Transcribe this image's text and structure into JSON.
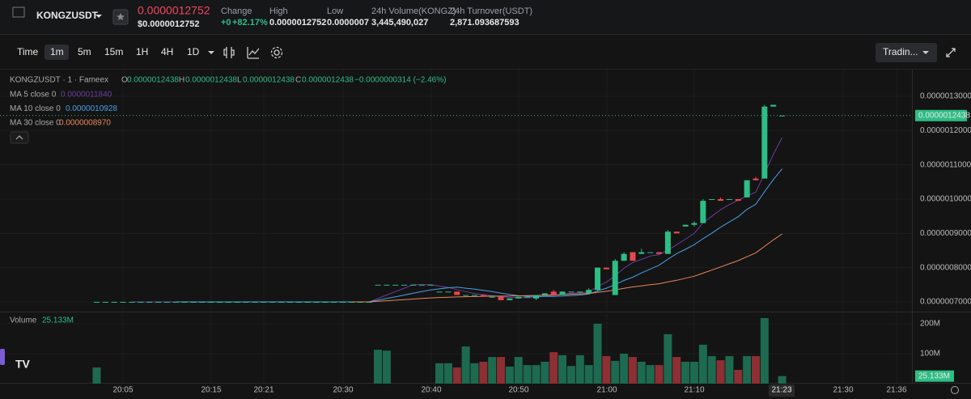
{
  "header": {
    "symbol": "KONGZUSDT",
    "price": "0.0000012752",
    "price_usd": "$0.0000012752",
    "stats": [
      {
        "label": "Change",
        "value": "+0",
        "extra": "+82.17%"
      },
      {
        "label": "High",
        "value": "0.0000012752"
      },
      {
        "label": "Low",
        "value": "0.0000007"
      },
      {
        "label": "24h Volume(KONGZ)",
        "value": "3,445,490,027"
      },
      {
        "label": "24h Turnover(USDT)",
        "value": "2,871.093687593"
      }
    ]
  },
  "toolbar": {
    "intervals": [
      "Time",
      "1m",
      "5m",
      "15m",
      "1H",
      "4H",
      "1D"
    ],
    "selected": 1,
    "view": "Tradin..."
  },
  "chart": {
    "legend": {
      "title": "KONGZUSDT · 1 · Fameex",
      "o_label": "O",
      "open": "0.0000012438",
      "h_label": "H",
      "high": "0.0000012438",
      "l_label": "L",
      "low": "0.0000012438",
      "c_label": "C",
      "close": "0.0000012438",
      "change": "−0.0000000314 (−2.46%)"
    },
    "ma": [
      {
        "label": "MA 5 close 0",
        "value": "0.0000011840",
        "period": 5
      },
      {
        "label": "MA 10 close 0",
        "value": "0.0000010928",
        "period": 10
      },
      {
        "label": "MA 30 close 0",
        "value": "0.0000008970",
        "period": 30
      }
    ],
    "colors": {
      "up": "#2ebd85",
      "down": "#e5484d",
      "volume_up": "#1d6a50",
      "volume_down": "#8e2f33",
      "ma": [
        "#6a3ea1",
        "#4b9fe6",
        "#e8875b"
      ]
    },
    "yticks": [
      {
        "value": 1.3e-06,
        "label": "0.0000013000"
      },
      {
        "value": 1.2e-06,
        "label": "0.0000012000"
      },
      {
        "value": 1.1e-06,
        "label": "0.0000011000"
      },
      {
        "value": 1e-06,
        "label": "0.0000010000"
      },
      {
        "value": 9e-07,
        "label": "0.0000009000"
      },
      {
        "value": 8e-07,
        "label": "0.0000008000"
      },
      {
        "value": 7e-07,
        "label": "0.0000007000"
      }
    ],
    "last_price": {
      "value": 1.2438e-06,
      "label": "0.0000012438"
    },
    "volume_legend": {
      "label": "Volume",
      "value": "25.133M"
    },
    "volume_ticks": [
      {
        "value": 200000000,
        "label": "200M"
      },
      {
        "value": 100000000,
        "label": "100M"
      }
    ],
    "time_labels": [
      "20:05",
      "20:15",
      "20:21",
      "20:30",
      "20:40",
      "20:50",
      "21:00",
      "21:10",
      "21:30",
      "21:36"
    ],
    "cursor_time": "21:23",
    "candles": [
      [
        7e-07,
        7e-07,
        7e-07,
        7e-07
      ],
      [
        7e-07,
        7e-07,
        7e-07,
        7e-07
      ],
      [
        7e-07,
        7e-07,
        7e-07,
        7e-07
      ],
      [
        7e-07,
        7e-07,
        7e-07,
        7e-07
      ],
      [
        7e-07,
        7e-07,
        7e-07,
        7e-07
      ],
      [
        7e-07,
        7e-07,
        7e-07,
        7e-07
      ],
      [
        7e-07,
        7e-07,
        7e-07,
        7e-07
      ],
      [
        7e-07,
        7e-07,
        7e-07,
        7e-07
      ],
      [
        7e-07,
        7e-07,
        7e-07,
        7e-07
      ],
      [
        7e-07,
        7e-07,
        7e-07,
        7e-07
      ],
      [
        7e-07,
        7e-07,
        7e-07,
        7e-07
      ],
      [
        7e-07,
        7e-07,
        7e-07,
        7e-07
      ],
      [
        7e-07,
        7e-07,
        7e-07,
        7e-07
      ],
      [
        7e-07,
        7e-07,
        7e-07,
        7e-07
      ],
      [
        7e-07,
        7e-07,
        7e-07,
        7e-07
      ],
      [
        7e-07,
        7e-07,
        7e-07,
        7e-07
      ],
      [
        7e-07,
        7e-07,
        7e-07,
        7e-07
      ],
      [
        7e-07,
        7e-07,
        7e-07,
        7e-07
      ],
      [
        7e-07,
        7e-07,
        7e-07,
        7e-07
      ],
      [
        7e-07,
        7e-07,
        7e-07,
        7e-07
      ],
      [
        7e-07,
        7e-07,
        7e-07,
        7e-07
      ],
      [
        7e-07,
        7e-07,
        7e-07,
        7e-07
      ],
      [
        7e-07,
        7e-07,
        7e-07,
        7e-07
      ],
      [
        7e-07,
        7e-07,
        7e-07,
        7e-07
      ],
      [
        7e-07,
        7e-07,
        7e-07,
        7e-07
      ],
      [
        7e-07,
        7e-07,
        7e-07,
        7e-07
      ],
      [
        7e-07,
        7e-07,
        7e-07,
        7e-07
      ],
      [
        7e-07,
        7e-07,
        7e-07,
        7e-07
      ],
      [
        7e-07,
        7e-07,
        7e-07,
        7e-07
      ],
      [
        7e-07,
        7e-07,
        7e-07,
        7e-07
      ],
      [
        7e-07,
        7e-07,
        7e-07,
        7e-07
      ],
      [
        7e-07,
        7e-07,
        7e-07,
        7e-07
      ],
      [
        7.5e-07,
        7.5e-07,
        7.5e-07,
        7.5e-07
      ],
      [
        7.5e-07,
        7.5e-07,
        7.5e-07,
        7.5e-07
      ],
      [
        7.5e-07,
        7.5e-07,
        7.5e-07,
        7.5e-07
      ],
      [
        7.5e-07,
        7.5e-07,
        7.5e-07,
        7.5e-07
      ],
      [
        7.5e-07,
        7.5e-07,
        7.5e-07,
        7.5e-07
      ],
      [
        7.5e-07,
        7.5e-07,
        7.5e-07,
        7.5e-07
      ],
      [
        7.5e-07,
        7.5e-07,
        7.5e-07,
        7.5e-07
      ],
      [
        7.3e-07,
        7.3e-07,
        7.3e-07,
        7.3e-07
      ],
      [
        7.3e-07,
        7.3e-07,
        7.3e-07,
        7.3e-07
      ],
      [
        7.3e-07,
        7.3e-07,
        7.2e-07,
        7.2e-07
      ],
      [
        7.2e-07,
        7.2e-07,
        7.2e-07,
        7.2e-07
      ],
      [
        7.2e-07,
        7.2e-07,
        7.2e-07,
        7.2e-07
      ],
      [
        7.2e-07,
        7.2e-07,
        7.15e-07,
        7.15e-07
      ],
      [
        7.15e-07,
        7.15e-07,
        7.15e-07,
        7.15e-07
      ],
      [
        7.15e-07,
        7.15e-07,
        7.05e-07,
        7.05e-07
      ],
      [
        7.05e-07,
        7.1e-07,
        7.05e-07,
        7.1e-07
      ],
      [
        7.1e-07,
        7.15e-07,
        7.1e-07,
        7.15e-07
      ],
      [
        7.15e-07,
        7.15e-07,
        7.15e-07,
        7.15e-07
      ],
      [
        7.1e-07,
        7.2e-07,
        7.05e-07,
        7.2e-07
      ],
      [
        7.2e-07,
        7.25e-07,
        7.2e-07,
        7.25e-07
      ],
      [
        7.3e-07,
        7.35e-07,
        7.2e-07,
        7.2e-07
      ],
      [
        7.2e-07,
        7.3e-07,
        7.2e-07,
        7.3e-07
      ],
      [
        7.3e-07,
        7.3e-07,
        7.3e-07,
        7.3e-07
      ],
      [
        7.3e-07,
        7.3e-07,
        7.25e-07,
        7.3e-07
      ],
      [
        7.25e-07,
        7.4e-07,
        7.25e-07,
        7.35e-07
      ],
      [
        7.35e-07,
        8e-07,
        7.3e-07,
        8e-07
      ],
      [
        8e-07,
        8e-07,
        7.95e-07,
        7.95e-07
      ],
      [
        7.2e-07,
        8.25e-07,
        7.2e-07,
        8.2e-07
      ],
      [
        8.2e-07,
        8.45e-07,
        8.2e-07,
        8.4e-07
      ],
      [
        8.45e-07,
        8.45e-07,
        8.2e-07,
        8.2e-07
      ],
      [
        8.4e-07,
        8.55e-07,
        8.4e-07,
        8.45e-07
      ],
      [
        8.45e-07,
        8.45e-07,
        8.45e-07,
        8.45e-07
      ],
      [
        8.45e-07,
        8.45e-07,
        8.4e-07,
        8.4e-07
      ],
      [
        8.4e-07,
        9.1e-07,
        8.4e-07,
        9.05e-07
      ],
      [
        9.05e-07,
        9.05e-07,
        9e-07,
        9e-07
      ],
      [
        9.2e-07,
        9.25e-07,
        9.2e-07,
        9.25e-07
      ],
      [
        9.25e-07,
        9.35e-07,
        9.2e-07,
        9.3e-07
      ],
      [
        9.3e-07,
        1e-06,
        9.3e-07,
        9.95e-07
      ],
      [
        1e-06,
        1e-06,
        1e-06,
        1e-06
      ],
      [
        1e-06,
        1.005e-06,
        9.95e-07,
        9.95e-07
      ],
      [
        1e-06,
        1e-06,
        1e-06,
        1e-06
      ],
      [
        1e-06,
        1e-06,
        9.95e-07,
        9.95e-07
      ],
      [
        1.005e-06,
        1.055e-06,
        1.005e-06,
        1.055e-06
      ],
      [
        1.06e-06,
        1.065e-06,
        1.055e-06,
        1.055e-06
      ],
      [
        1.06e-06,
        1.275e-06,
        1.06e-06,
        1.27e-06
      ],
      [
        1.27e-06,
        1.2752e-06,
        1.27e-06,
        1.2752e-06
      ],
      [
        1.2438e-06,
        1.2438e-06,
        1.2438e-06,
        1.2438e-06
      ]
    ],
    "volumes": [
      54000000,
      0,
      0,
      0,
      0,
      0,
      0,
      0,
      0,
      0,
      0,
      0,
      0,
      0,
      0,
      0,
      0,
      0,
      0,
      0,
      0,
      0,
      0,
      0,
      0,
      0,
      0,
      0,
      0,
      0,
      0,
      0,
      113000000,
      110000000,
      0,
      0,
      0,
      0,
      0,
      68000000,
      68000000,
      54000000,
      124000000,
      68000000,
      73000000,
      89000000,
      89000000,
      57000000,
      89000000,
      62000000,
      62000000,
      73000000,
      105000000,
      95000000,
      59000000,
      95000000,
      62000000,
      200000000,
      92000000,
      76000000,
      100000000,
      89000000,
      73000000,
      62000000,
      62000000,
      165000000,
      89000000,
      73000000,
      73000000,
      130000000,
      92000000,
      78000000,
      92000000,
      46000000,
      92000000,
      92000000,
      219000000,
      0,
      25133000
    ]
  }
}
